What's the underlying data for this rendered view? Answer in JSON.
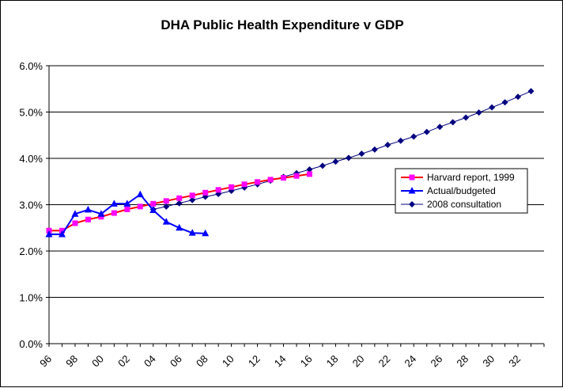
{
  "chart_data": {
    "type": "line",
    "title": "DHA Public Health Expenditure v GDP",
    "xlabel": "",
    "ylabel": "",
    "y_ticks": [
      "0.0%",
      "1.0%",
      "2.0%",
      "3.0%",
      "4.0%",
      "5.0%",
      "6.0%"
    ],
    "ylim": [
      0,
      6
    ],
    "x_ticks": [
      "96",
      "98",
      "00",
      "02",
      "04",
      "06",
      "08",
      "10",
      "12",
      "14",
      "16",
      "18",
      "20",
      "22",
      "24",
      "26",
      "28",
      "30",
      "32"
    ],
    "xlim": [
      1996,
      2034
    ],
    "grid": "horizontal",
    "legend_position": "right",
    "series": [
      {
        "name": "Harvard report, 1999",
        "color": "#ff00ff",
        "line_color": "#ff0000",
        "marker": "square",
        "x": [
          1996,
          1997,
          1998,
          1999,
          2000,
          2001,
          2002,
          2003,
          2004,
          2005,
          2006,
          2007,
          2008,
          2009,
          2010,
          2011,
          2012,
          2013,
          2014,
          2015,
          2016
        ],
        "values": [
          2.44,
          2.44,
          2.6,
          2.68,
          2.74,
          2.82,
          2.9,
          2.96,
          3.02,
          3.08,
          3.14,
          3.2,
          3.26,
          3.32,
          3.38,
          3.44,
          3.49,
          3.54,
          3.58,
          3.62,
          3.66
        ]
      },
      {
        "name": "Actual/budgeted",
        "color": "#0000ff",
        "line_color": "#0000ff",
        "marker": "triangle",
        "x": [
          1996,
          1997,
          1998,
          1999,
          2000,
          2001,
          2002,
          2003,
          2004,
          2005,
          2006,
          2007,
          2008
        ],
        "values": [
          2.36,
          2.36,
          2.8,
          2.89,
          2.8,
          3.02,
          3.02,
          3.22,
          2.88,
          2.63,
          2.5,
          2.39,
          2.38
        ]
      },
      {
        "name": "2008 consultation",
        "color": "#000080",
        "line_color": "#000080",
        "marker": "diamond",
        "x": [
          2004,
          2005,
          2006,
          2007,
          2008,
          2009,
          2010,
          2011,
          2012,
          2013,
          2014,
          2015,
          2016,
          2017,
          2018,
          2019,
          2020,
          2021,
          2022,
          2023,
          2024,
          2025,
          2026,
          2027,
          2028,
          2029,
          2030,
          2031,
          2032,
          2033
        ],
        "values": [
          2.9,
          2.96,
          3.03,
          3.1,
          3.17,
          3.23,
          3.3,
          3.37,
          3.44,
          3.52,
          3.6,
          3.68,
          3.76,
          3.84,
          3.93,
          4.01,
          4.1,
          4.19,
          4.29,
          4.38,
          4.47,
          4.57,
          4.68,
          4.78,
          4.88,
          4.99,
          5.1,
          5.21,
          5.33,
          5.45
        ]
      }
    ]
  }
}
